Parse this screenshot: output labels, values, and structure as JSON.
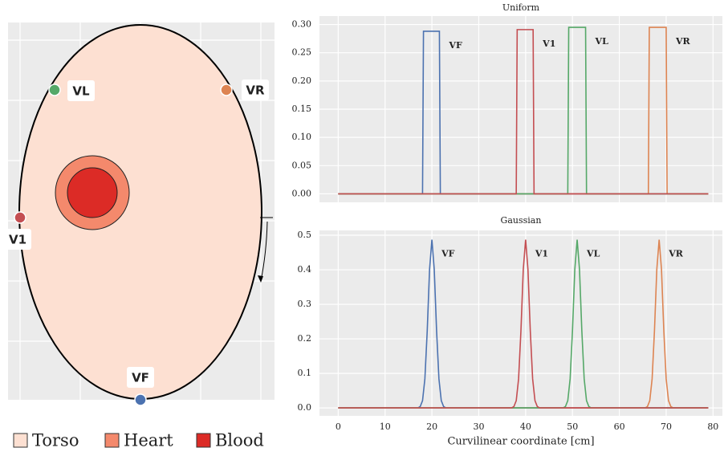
{
  "diagram": {
    "electrodes": [
      {
        "label": "VL",
        "color": "#55a868"
      },
      {
        "label": "VR",
        "color": "#dd8452"
      },
      {
        "label": "V1",
        "color": "#c44e52"
      },
      {
        "label": "VF",
        "color": "#4c72b0"
      }
    ],
    "legend": [
      {
        "label": "Torso",
        "color": "#fde0d2"
      },
      {
        "label": "Heart",
        "color": "#f4896c"
      },
      {
        "label": "Blood",
        "color": "#dc2b26"
      }
    ]
  },
  "chart_data": [
    {
      "type": "line",
      "title": "Uniform",
      "show_xtick_labels": false,
      "xlim": [
        -4,
        82
      ],
      "ylim": [
        -0.015,
        0.315
      ],
      "grid": true,
      "xticks": [
        0,
        10,
        20,
        30,
        40,
        50,
        60,
        70,
        80
      ],
      "yticks": [
        {
          "value": 0,
          "label": "0.00"
        },
        {
          "value": 0.05,
          "label": "0.05"
        },
        {
          "value": 0.1,
          "label": "0.10"
        },
        {
          "value": 0.15,
          "label": "0.15"
        },
        {
          "value": 0.2,
          "label": "0.20"
        },
        {
          "value": 0.25,
          "label": "0.25"
        },
        {
          "value": 0.3,
          "label": "0.30"
        }
      ],
      "series": [
        {
          "name": "VF",
          "color": "#4c72b0",
          "x": [
            0,
            18,
            18.2,
            21.6,
            21.8,
            79
          ],
          "values": [
            0,
            0,
            0.288,
            0.288,
            0,
            0
          ]
        },
        {
          "name": "VR",
          "color": "#dd8452",
          "x": [
            0,
            66.2,
            66.4,
            70,
            70.2,
            79
          ],
          "values": [
            0,
            0,
            0.295,
            0.295,
            0,
            0
          ]
        },
        {
          "name": "VL",
          "color": "#55a868",
          "x": [
            0,
            49,
            49.2,
            52.8,
            53,
            79
          ],
          "values": [
            0,
            0,
            0.295,
            0.295,
            0,
            0
          ]
        },
        {
          "name": "V1",
          "color": "#c44e52",
          "x": [
            0,
            38,
            38.2,
            41.6,
            41.8,
            79
          ],
          "values": [
            0,
            0,
            0.291,
            0.291,
            0,
            0
          ]
        }
      ]
    },
    {
      "type": "line",
      "title": "Gaussian",
      "xlabel": "Curvilinear coordinate [cm]",
      "show_xtick_labels": true,
      "xlim": [
        -4,
        82
      ],
      "ylim": [
        -0.023,
        0.514
      ],
      "grid": true,
      "xticks": [
        0,
        10,
        20,
        30,
        40,
        50,
        60,
        70,
        80
      ],
      "yticks": [
        {
          "value": 0,
          "label": "0.0"
        },
        0.1,
        0.2,
        0.3,
        0.4,
        0.5
      ],
      "series": [
        {
          "name": "VF",
          "color": "#4c72b0",
          "x": [
            0,
            17,
            17.5,
            18,
            18.5,
            19,
            19.5,
            20,
            20.5,
            21,
            21.5,
            22,
            22.5,
            23,
            79
          ],
          "values": [
            0,
            0,
            0.004,
            0.021,
            0.084,
            0.223,
            0.401,
            0.487,
            0.401,
            0.223,
            0.084,
            0.021,
            0.004,
            0,
            0
          ]
        },
        {
          "name": "VR",
          "color": "#dd8452",
          "x": [
            0,
            65.5,
            66,
            66.5,
            67,
            67.5,
            68,
            68.5,
            69,
            69.5,
            70,
            70.5,
            71,
            71.5,
            79
          ],
          "values": [
            0,
            0,
            0.004,
            0.021,
            0.084,
            0.223,
            0.401,
            0.487,
            0.401,
            0.223,
            0.084,
            0.021,
            0.004,
            0,
            0
          ]
        },
        {
          "name": "VL",
          "color": "#55a868",
          "x": [
            0,
            48,
            48.5,
            49,
            49.5,
            50,
            50.5,
            51,
            51.5,
            52,
            52.5,
            53,
            53.5,
            54,
            79
          ],
          "values": [
            0,
            0,
            0.004,
            0.021,
            0.084,
            0.223,
            0.401,
            0.487,
            0.401,
            0.223,
            0.084,
            0.021,
            0.004,
            0,
            0
          ]
        },
        {
          "name": "V1",
          "color": "#c44e52",
          "x": [
            0,
            37,
            37.5,
            38,
            38.5,
            39,
            39.5,
            40,
            40.5,
            41,
            41.5,
            42,
            42.5,
            43,
            79
          ],
          "values": [
            0,
            0,
            0.004,
            0.021,
            0.084,
            0.223,
            0.401,
            0.487,
            0.401,
            0.223,
            0.084,
            0.021,
            0.004,
            0,
            0
          ]
        }
      ]
    }
  ]
}
